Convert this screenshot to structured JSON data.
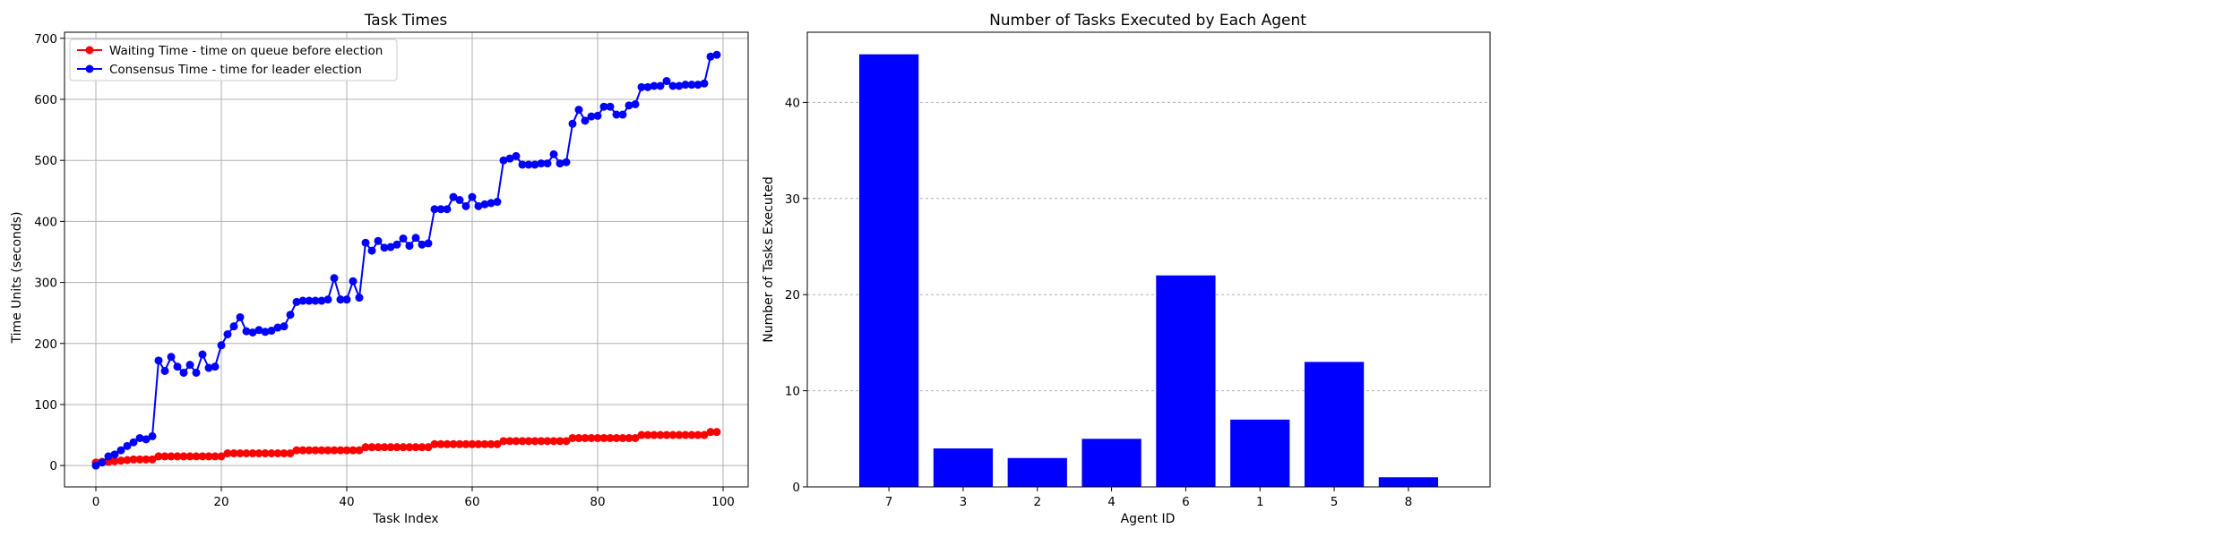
{
  "chart_data": [
    {
      "type": "line",
      "title": "Task Times",
      "xlabel": "Task Index",
      "ylabel": "Time Units (seconds)",
      "xlim": [
        -5,
        104
      ],
      "ylim": [
        -35,
        710
      ],
      "xticks": [
        0,
        20,
        40,
        60,
        80,
        100
      ],
      "yticks": [
        0,
        100,
        200,
        300,
        400,
        500,
        600,
        700
      ],
      "grid": true,
      "legend_position": "upper-left",
      "series": [
        {
          "name": "Waiting Time - time on queue before election",
          "color": "#ff0000",
          "values": [
            5,
            6,
            6,
            7,
            8,
            9,
            10,
            10,
            10,
            10,
            15,
            15,
            15,
            15,
            15,
            15,
            15,
            15,
            15,
            15,
            15,
            20,
            20,
            20,
            20,
            20,
            20,
            20,
            20,
            20,
            20,
            20,
            25,
            25,
            25,
            25,
            25,
            25,
            25,
            25,
            25,
            25,
            25,
            30,
            30,
            30,
            30,
            30,
            30,
            30,
            30,
            30,
            30,
            30,
            35,
            35,
            35,
            35,
            35,
            35,
            35,
            35,
            35,
            35,
            35,
            40,
            40,
            40,
            40,
            40,
            40,
            40,
            40,
            40,
            40,
            40,
            45,
            45,
            45,
            45,
            45,
            45,
            45,
            45,
            45,
            45,
            45,
            50,
            50,
            50,
            50,
            50,
            50,
            50,
            50,
            50,
            50,
            50,
            55,
            55
          ]
        },
        {
          "name": "Consensus Time - time for leader election",
          "color": "#0000ff",
          "values": [
            0,
            5,
            15,
            18,
            25,
            32,
            38,
            45,
            43,
            48,
            172,
            155,
            178,
            162,
            152,
            165,
            152,
            182,
            160,
            162,
            197,
            215,
            228,
            243,
            220,
            218,
            222,
            219,
            221,
            226,
            228,
            247,
            268,
            270,
            270,
            270,
            270,
            272,
            307,
            272,
            272,
            302,
            275,
            365,
            352,
            368,
            357,
            358,
            362,
            372,
            360,
            373,
            362,
            364,
            420,
            420,
            420,
            440,
            435,
            425,
            440,
            425,
            428,
            430,
            432,
            500,
            503,
            507,
            493,
            493,
            493,
            495,
            495,
            510,
            495,
            497,
            560,
            583,
            565,
            572,
            573,
            588,
            588,
            575,
            575,
            590,
            592,
            620,
            620,
            622,
            622,
            630,
            622,
            622,
            624,
            624,
            624,
            626,
            670,
            673
          ]
        }
      ]
    },
    {
      "type": "bar",
      "title": "Number of Tasks Executed by Each Agent",
      "xlabel": "Agent ID",
      "ylabel": "Number of Tasks Executed",
      "categories": [
        "7",
        "3",
        "2",
        "4",
        "6",
        "1",
        "5",
        "8"
      ],
      "values": [
        45,
        4,
        3,
        5,
        22,
        7,
        13,
        1
      ],
      "ylim": [
        0,
        47.3
      ],
      "yticks": [
        0,
        10,
        20,
        30,
        40
      ],
      "grid": "y-dashed",
      "color": "#0000ff"
    }
  ]
}
